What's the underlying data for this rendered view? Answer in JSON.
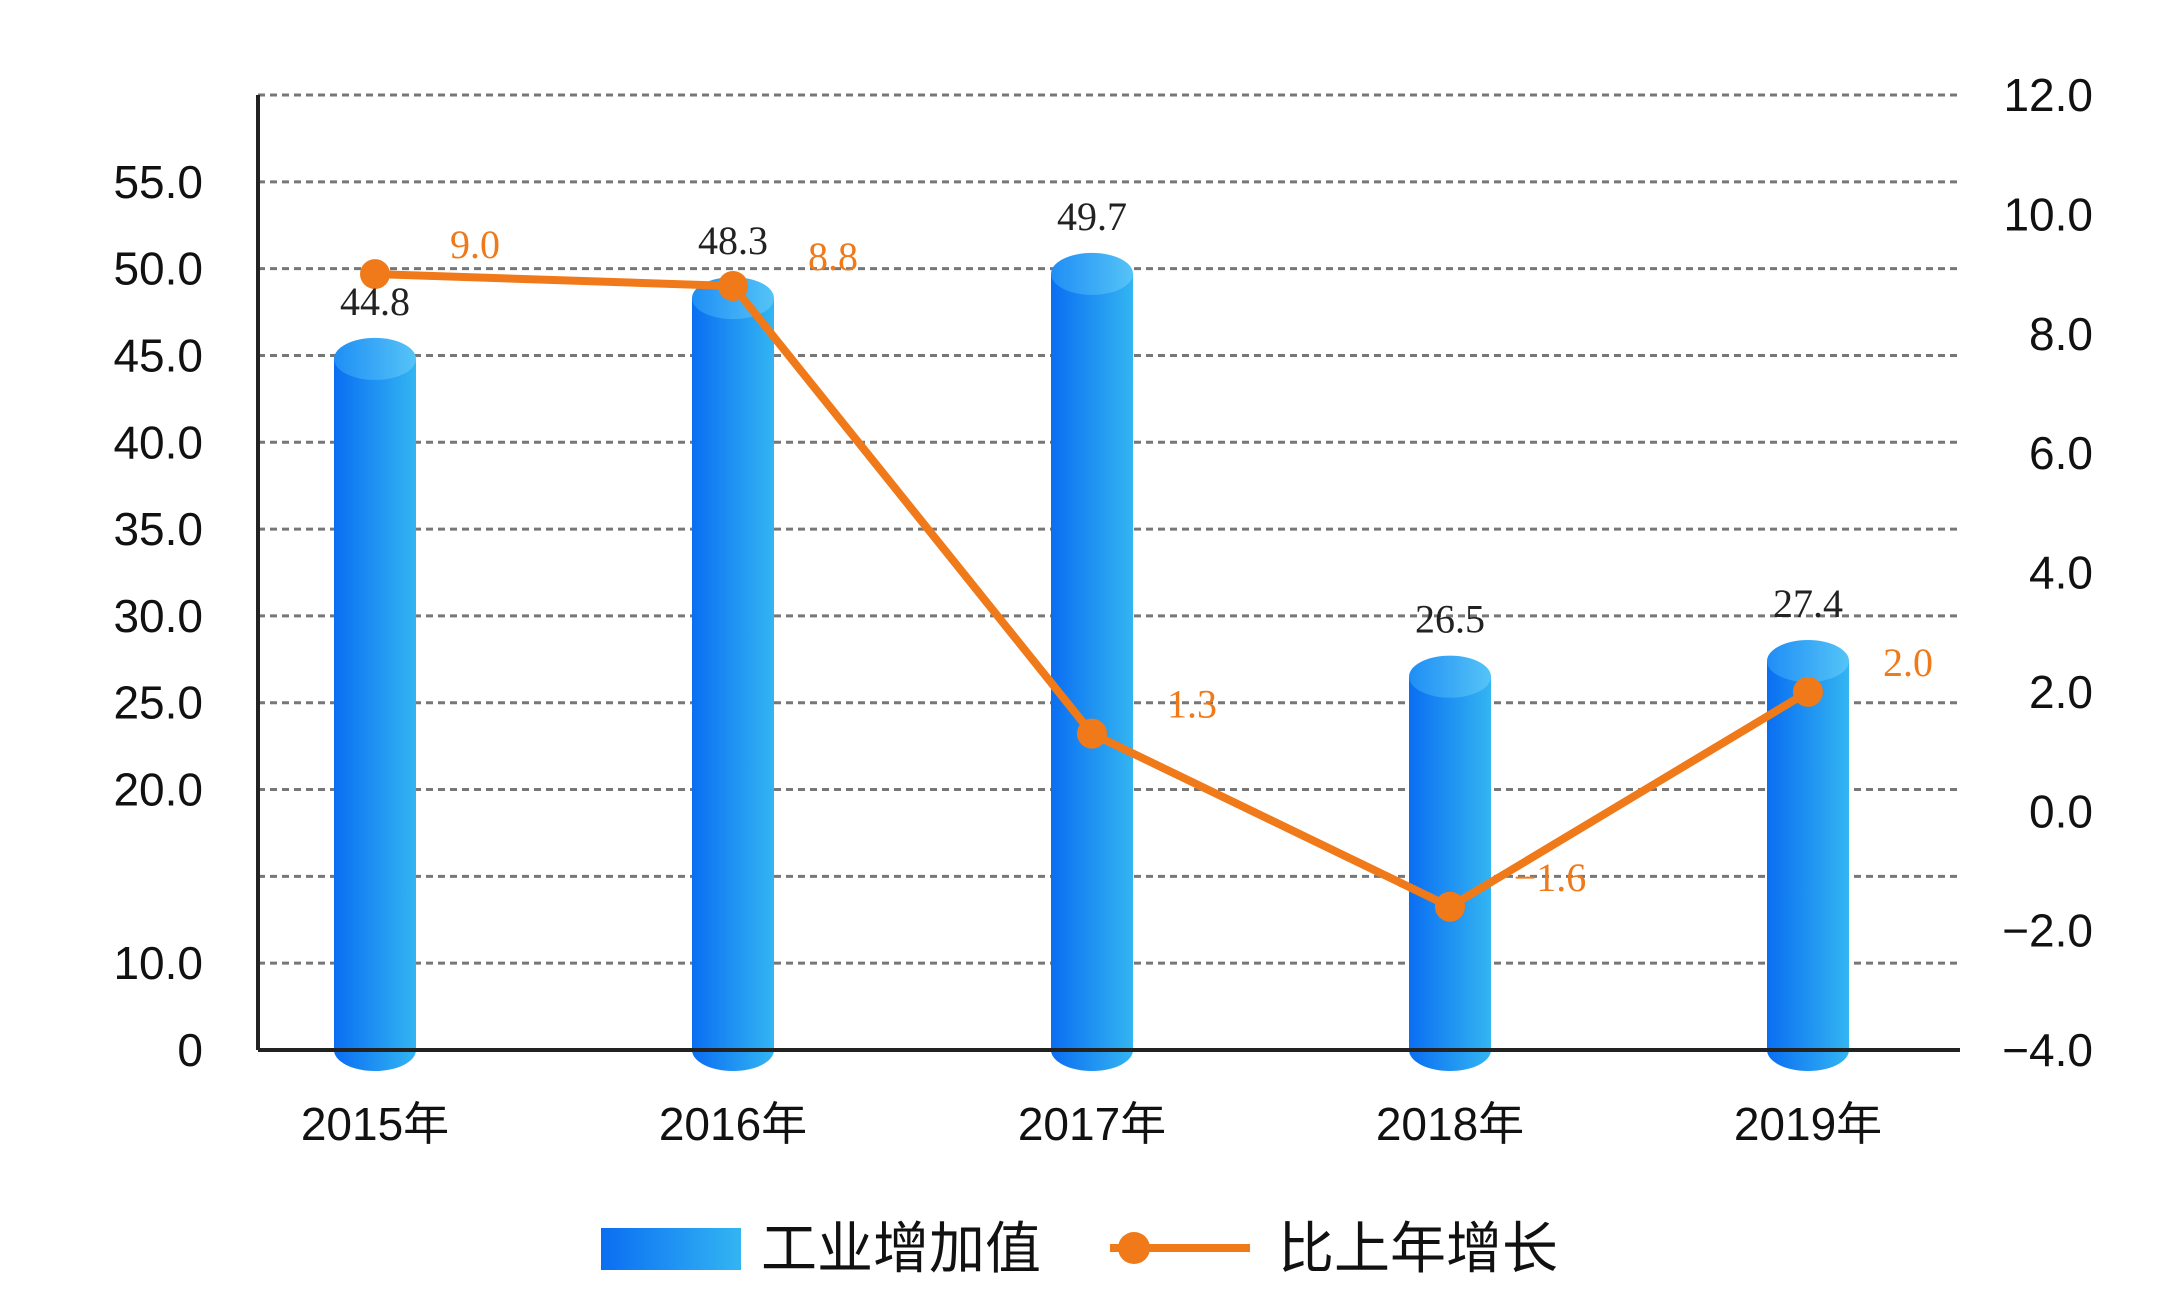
{
  "chart_data": {
    "type": "bar",
    "categories": [
      "2015年",
      "2016年",
      "2017年",
      "2018年",
      "2019年"
    ],
    "series": [
      {
        "name": "工业增加值",
        "type": "bar",
        "axis": "left",
        "values": [
          44.8,
          48.3,
          49.7,
          26.5,
          27.4
        ],
        "labels": [
          "44.8",
          "48.3",
          "49.7",
          "26.5",
          "27.4"
        ]
      },
      {
        "name": "比上年增长",
        "type": "line",
        "axis": "right",
        "values": [
          9.0,
          8.8,
          1.3,
          -1.6,
          2.0
        ],
        "labels": [
          "9.0",
          "8.8",
          "1.3",
          "−1.6",
          "2.0"
        ]
      }
    ],
    "left_axis": {
      "ticks": [
        0,
        10.0,
        20.0,
        25.0,
        30.0,
        35.0,
        40.0,
        45.0,
        50.0,
        55.0
      ],
      "tick_labels": [
        "0",
        "10.0",
        "20.0",
        "25.0",
        "30.0",
        "35.0",
        "40.0",
        "45.0",
        "50.0",
        "55.0"
      ]
    },
    "right_axis": {
      "ylim": [
        -4.0,
        12.0
      ],
      "ticks": [
        -4.0,
        -2.0,
        0.0,
        2.0,
        4.0,
        6.0,
        8.0,
        10.0,
        12.0
      ],
      "tick_labels": [
        "−4.0",
        "−2.0",
        "0.0",
        "2.0",
        "4.0",
        "6.0",
        "8.0",
        "10.0",
        "12.0"
      ]
    },
    "grid": true,
    "legend_position": "bottom-center",
    "colors": {
      "bar_dark": "#0a6ef2",
      "bar_light": "#33b5f2",
      "line": "#f07a19",
      "grid": "#777777",
      "axis": "#222222"
    }
  }
}
